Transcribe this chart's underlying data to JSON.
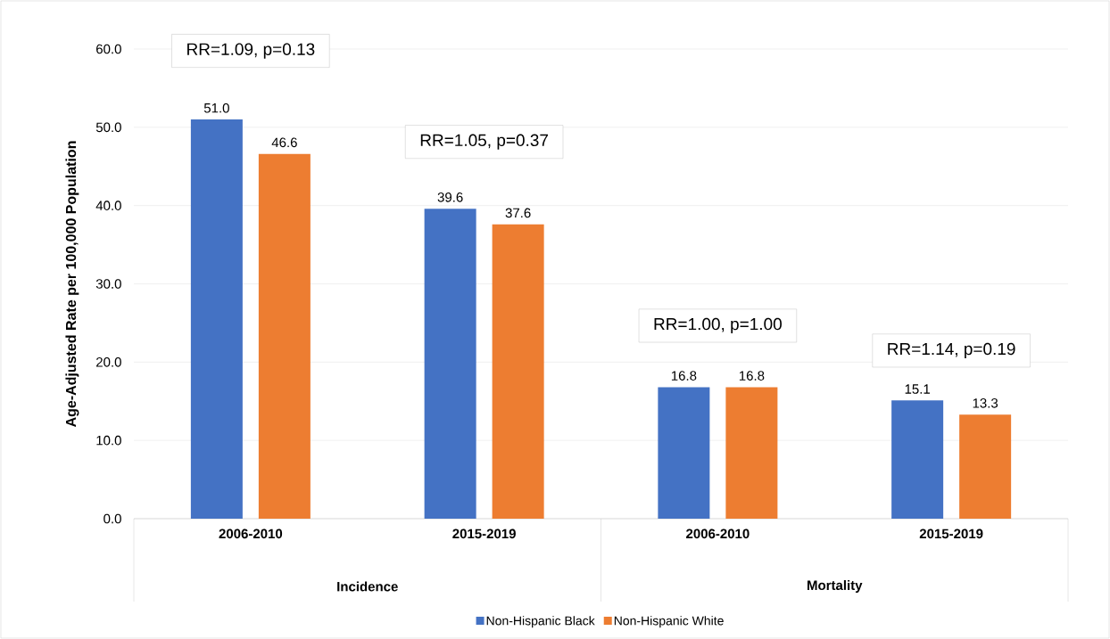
{
  "chart_data": {
    "type": "bar",
    "ylabel": "Age-Adjusted Rate per 100,000 Population",
    "categories": [
      "2006-2010",
      "2015-2019",
      "2006-2010",
      "2015-2019"
    ],
    "series": [
      {
        "name": "Non-Hispanic Black",
        "color": "#4472c4",
        "values": [
          51.0,
          39.6,
          16.8,
          15.1
        ],
        "value_labels": [
          "51.0",
          "39.6",
          "16.8",
          "15.1"
        ]
      },
      {
        "name": "Non-Hispanic White",
        "color": "#ed7d31",
        "values": [
          46.6,
          37.6,
          16.8,
          13.3
        ],
        "value_labels": [
          "46.6",
          "37.6",
          "16.8",
          "13.3"
        ]
      }
    ],
    "ylim": [
      0,
      60
    ],
    "yticks": [
      {
        "value": 0,
        "label": "0.0"
      },
      {
        "value": 10,
        "label": "10.0"
      },
      {
        "value": 20,
        "label": "20.0"
      },
      {
        "value": 30,
        "label": "30.0"
      },
      {
        "value": 40,
        "label": "40.0"
      },
      {
        "value": 50,
        "label": "50.0"
      },
      {
        "value": 60,
        "label": "60.0"
      }
    ],
    "grid": "y",
    "legend": "bottom",
    "annotations": [
      "RR=1.09, p=0.13",
      "RR=1.05, p=0.37",
      "RR=1.00, p=1.00",
      "RR=1.14, p=0.19",
      "Incidence",
      "Mortality"
    ]
  }
}
